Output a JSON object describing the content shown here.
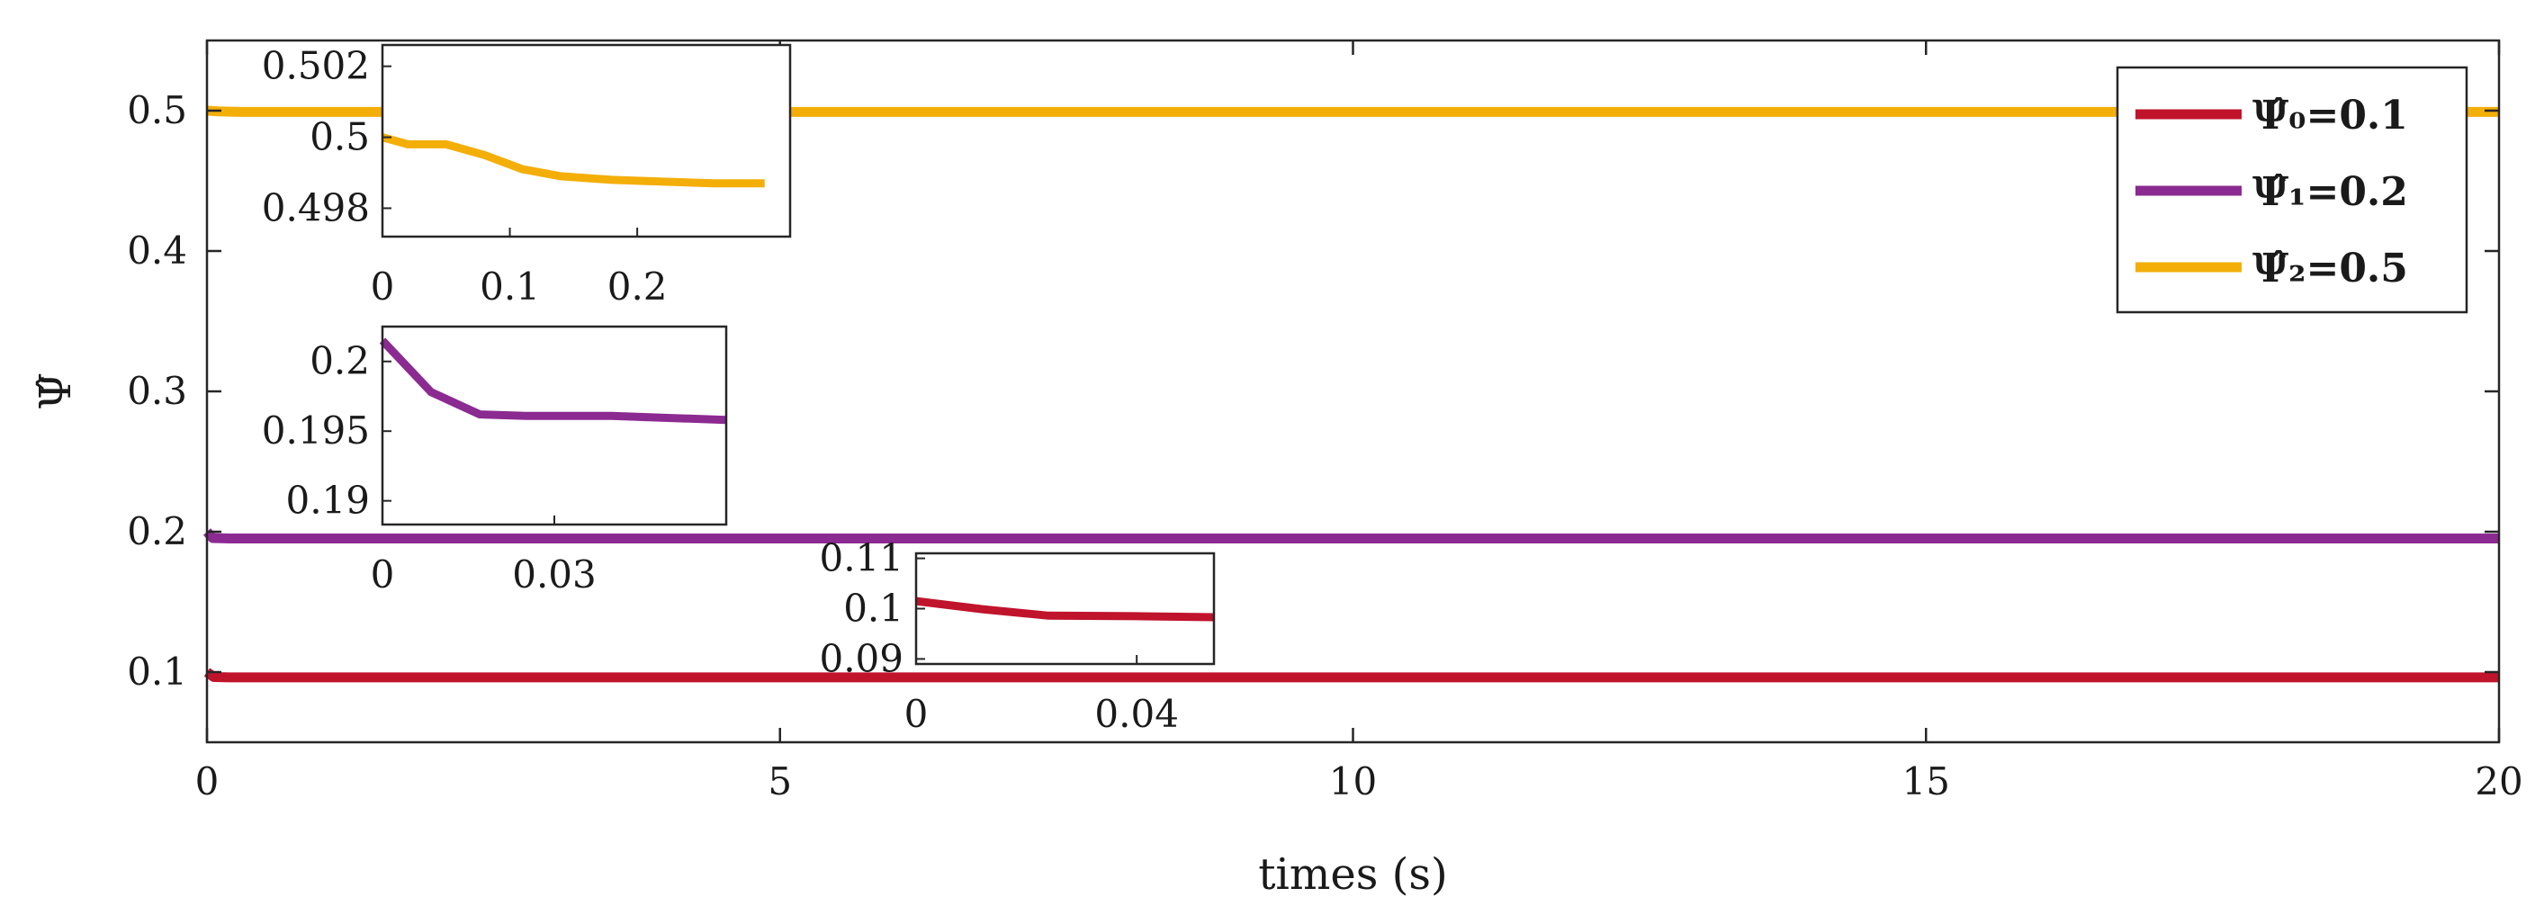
{
  "chart_data": {
    "type": "line",
    "title": "",
    "xlabel": "times (s)",
    "ylabel": "Ψ̂",
    "xlim": [
      0,
      20
    ],
    "ylim": [
      0.05,
      0.55
    ],
    "xticks": [
      "0",
      "5",
      "10",
      "15",
      "20"
    ],
    "yticks": [
      "0.1",
      "0.2",
      "0.3",
      "0.4",
      "0.5"
    ],
    "grid": false,
    "legend_position": "top-right",
    "series": [
      {
        "name": "Ψ̂₀=0.1",
        "color": "#c0142c",
        "x": [
          0,
          0.06,
          0.2,
          20
        ],
        "y": [
          0.1,
          0.0965,
          0.0962,
          0.0962
        ]
      },
      {
        "name": "Ψ̂₁=0.2",
        "color": "#8b2a91",
        "x": [
          0,
          0.05,
          0.2,
          20
        ],
        "y": [
          0.2,
          0.1955,
          0.1952,
          0.1952
        ]
      },
      {
        "name": "Ψ̂₂=0.5",
        "color": "#f3ae08",
        "x": [
          0,
          0.1,
          0.3,
          20
        ],
        "y": [
          0.5,
          0.4995,
          0.4991,
          0.4991
        ]
      }
    ],
    "insets": [
      {
        "series_index": 2,
        "xlim": [
          0,
          0.32
        ],
        "ylim": [
          0.4972,
          0.5026
        ],
        "xticks": [
          0,
          0.1,
          0.2
        ],
        "xtick_labels": [
          "0",
          "0.1",
          "0.2"
        ],
        "yticks": [
          0.502,
          0.5,
          0.498
        ],
        "ytick_labels": [
          "0.502",
          "0.5",
          "0.498"
        ],
        "x": [
          0,
          0.02,
          0.05,
          0.08,
          0.11,
          0.14,
          0.18,
          0.22,
          0.26,
          0.3
        ],
        "y": [
          0.5,
          0.4998,
          0.4998,
          0.4995,
          0.4991,
          0.4989,
          0.4988,
          0.49875,
          0.4987,
          0.4987
        ]
      },
      {
        "series_index": 1,
        "xlim": [
          0,
          0.06
        ],
        "ylim": [
          0.1883,
          0.2025
        ],
        "xticks": [
          0,
          0.03
        ],
        "xtick_labels": [
          "0",
          "0.03"
        ],
        "yticks": [
          0.2,
          0.195,
          0.19
        ],
        "ytick_labels": [
          "0.2",
          "0.195",
          "0.19"
        ],
        "x": [
          0,
          0.0085,
          0.017,
          0.025,
          0.04,
          0.06
        ],
        "y": [
          0.2015,
          0.1978,
          0.1962,
          0.1961,
          0.1961,
          0.1958
        ]
      },
      {
        "series_index": 0,
        "xlim": [
          0,
          0.054
        ],
        "ylim": [
          0.089,
          0.111
        ],
        "xticks": [
          0,
          0.04
        ],
        "xtick_labels": [
          "0",
          "0.04"
        ],
        "yticks": [
          0.11,
          0.1,
          0.09
        ],
        "ytick_labels": [
          "0.11",
          "0.1",
          "0.09"
        ],
        "x": [
          0,
          0.012,
          0.024,
          0.04,
          0.054
        ],
        "y": [
          0.1015,
          0.0999,
          0.0986,
          0.0985,
          0.0983
        ]
      }
    ]
  }
}
